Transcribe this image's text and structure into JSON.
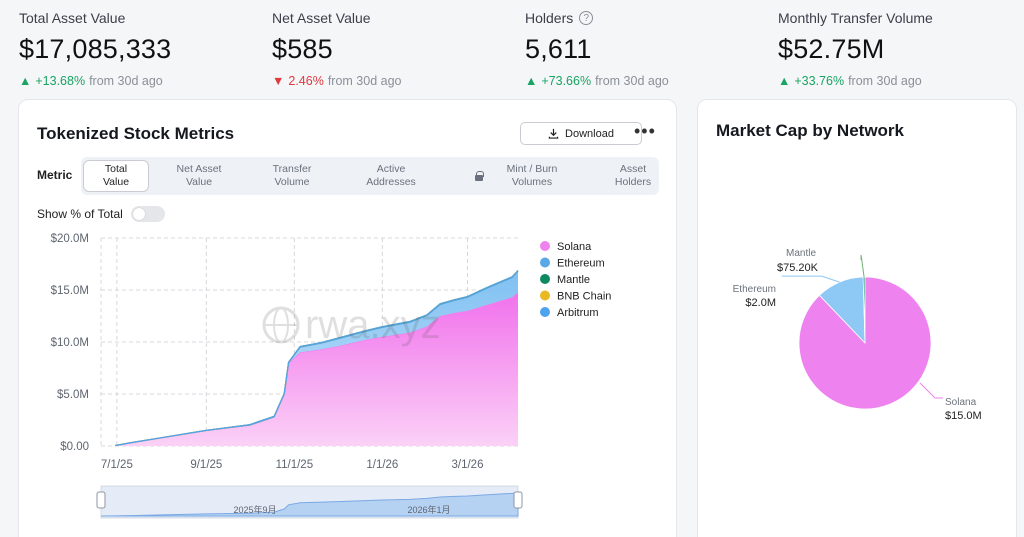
{
  "stats": [
    {
      "label": "Total Asset Value",
      "value": "$17,085,333",
      "direction": "up",
      "change": "+13.68%",
      "suffix": "from 30d ago",
      "help": false
    },
    {
      "label": "Net Asset Value",
      "value": "$585",
      "direction": "down",
      "change": "2.46%",
      "suffix": "from 30d ago",
      "help": false
    },
    {
      "label": "Holders",
      "value": "5,611",
      "direction": "up",
      "change": "+73.66%",
      "suffix": "from 30d ago",
      "help": true
    },
    {
      "label": "Monthly Transfer Volume",
      "value": "$52.75M",
      "direction": "up",
      "change": "+33.76%",
      "suffix": "from 30d ago",
      "help": false
    }
  ],
  "main_card": {
    "title": "Tokenized Stock Metrics",
    "download_label": "Download",
    "more_label": "•••",
    "metric_label": "Metric",
    "tabs": [
      {
        "label": "Total\nValue",
        "active": true,
        "locked": false
      },
      {
        "label": "Net Asset\nValue",
        "active": false,
        "locked": false
      },
      {
        "label": "Transfer\nVolume",
        "active": false,
        "locked": false
      },
      {
        "label": "Active\nAddresses",
        "active": false,
        "locked": false
      },
      {
        "label": "Mint / Burn\nVolumes",
        "active": false,
        "locked": true
      },
      {
        "label": "Asset\nHolders",
        "active": false,
        "locked": false
      }
    ],
    "show_pct_label": "Show % of Total",
    "watermark": "rwa.xyz",
    "range_labels": [
      "2025年9月",
      "2026年1月"
    ]
  },
  "chart_data": [
    {
      "type": "area",
      "stacked": true,
      "title": "Tokenized Stock Metrics",
      "ylim": [
        0,
        20000000
      ],
      "y_ticks": [
        "$0.00",
        "$5.0M",
        "$10.0M",
        "$15.0M",
        "$20.0M"
      ],
      "x_range": [
        "2025-06-20",
        "2026-04-05"
      ],
      "x_ticks": [
        {
          "date": "2025-07-01",
          "label": "7/1/25"
        },
        {
          "date": "2025-09-01",
          "label": "9/1/25"
        },
        {
          "date": "2025-11-01",
          "label": "11/1/25"
        },
        {
          "date": "2026-01-01",
          "label": "1/1/26"
        },
        {
          "date": "2026-03-01",
          "label": "3/1/26"
        }
      ],
      "x": [
        "2025-06-30",
        "2025-07-10",
        "2025-08-01",
        "2025-09-01",
        "2025-10-01",
        "2025-10-18",
        "2025-10-25",
        "2025-10-28",
        "2025-11-05",
        "2025-11-20",
        "2025-12-01",
        "2025-12-20",
        "2026-01-01",
        "2026-01-20",
        "2026-02-01",
        "2026-02-10",
        "2026-02-20",
        "2026-03-01",
        "2026-03-15",
        "2026-04-01",
        "2026-04-05"
      ],
      "series": [
        {
          "name": "Solana",
          "color": "#ee82ee",
          "values": [
            0.05,
            0.3,
            0.8,
            1.5,
            2.0,
            2.8,
            5.0,
            8.0,
            9.0,
            9.3,
            9.6,
            10.2,
            10.5,
            10.9,
            11.5,
            12.5,
            12.8,
            13.0,
            13.6,
            14.3,
            14.8
          ]
        },
        {
          "name": "Ethereum",
          "color": "#5aa9e6",
          "values": [
            0,
            0,
            0,
            0,
            0,
            0,
            0,
            0,
            0.5,
            0.6,
            0.7,
            0.8,
            0.9,
            1.0,
            1.05,
            1.1,
            1.2,
            1.3,
            1.6,
            1.9,
            2.0
          ]
        },
        {
          "name": "Mantle",
          "color": "#0f8a5f",
          "values": [
            0,
            0,
            0,
            0,
            0.05,
            0.05,
            0.05,
            0.06,
            0.06,
            0.06,
            0.07,
            0.07,
            0.07,
            0.07,
            0.07,
            0.07,
            0.07,
            0.07,
            0.075,
            0.075,
            0.075
          ]
        },
        {
          "name": "BNB Chain",
          "color": "#e8b923",
          "values": [
            0,
            0,
            0,
            0,
            0,
            0,
            0,
            0,
            0,
            0,
            0,
            0,
            0,
            0,
            0,
            0,
            0,
            0,
            0,
            0,
            0
          ]
        },
        {
          "name": "Arbitrum",
          "color": "#4ea3f0",
          "values": [
            0,
            0,
            0,
            0,
            0,
            0,
            0,
            0,
            0,
            0,
            0,
            0,
            0,
            0,
            0,
            0,
            0,
            0,
            0,
            0,
            0
          ]
        }
      ],
      "values_unit": "millions USD"
    },
    {
      "type": "pie",
      "title": "Market Cap by Network",
      "slices": [
        {
          "name": "Solana",
          "value": 15.0,
          "label": "$15.0M",
          "color": "#ee82ee"
        },
        {
          "name": "Ethereum",
          "value": 2.0,
          "label": "$2.0M",
          "color": "#8ec8f4"
        },
        {
          "name": "Mantle",
          "value": 0.0752,
          "label": "$75.20K",
          "color": "#0f8a5f"
        }
      ]
    }
  ]
}
